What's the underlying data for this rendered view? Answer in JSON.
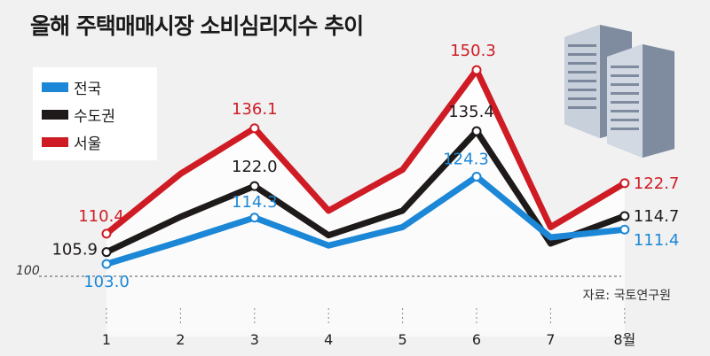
{
  "title": "올해 주택매매시장 소비심리지수 추이",
  "source": "자료: 국토연구원",
  "colors": {
    "background": "#f1f1f2",
    "nationwide": "#1c87d6",
    "capital_area": "#1f1a1a",
    "seoul": "#cf1b24"
  },
  "icons": [
    "apartment-buildings-icon"
  ],
  "chart_data": {
    "type": "line",
    "categories": [
      "1",
      "2",
      "3",
      "4",
      "5",
      "6",
      "7",
      "8월"
    ],
    "reference_line": {
      "value": 100,
      "label": "100"
    },
    "ylim": [
      93,
      158
    ],
    "grid": false,
    "legend_position": "top-left",
    "series": [
      {
        "name": "서울",
        "key": "seoul",
        "values": [
          110.4,
          125.0,
          136.1,
          116.0,
          126.0,
          150.3,
          112.0,
          122.7
        ],
        "labels": [
          "110.4",
          null,
          "136.1",
          null,
          null,
          "150.3",
          null,
          "122.7"
        ]
      },
      {
        "name": "수도권",
        "key": "capital_area",
        "values": [
          105.9,
          114.5,
          122.0,
          110.0,
          116.0,
          135.4,
          108.0,
          114.7
        ],
        "labels": [
          "105.9",
          null,
          "122.0",
          null,
          null,
          "135.4",
          null,
          "114.7"
        ]
      },
      {
        "name": "전국",
        "key": "nationwide",
        "values": [
          103.0,
          108.5,
          114.3,
          107.5,
          112.0,
          124.3,
          109.5,
          111.4
        ],
        "labels": [
          "103.0",
          null,
          "114.3",
          null,
          null,
          "124.3",
          null,
          "111.4"
        ]
      }
    ],
    "legend": [
      "전국",
      "수도권",
      "서울"
    ]
  }
}
